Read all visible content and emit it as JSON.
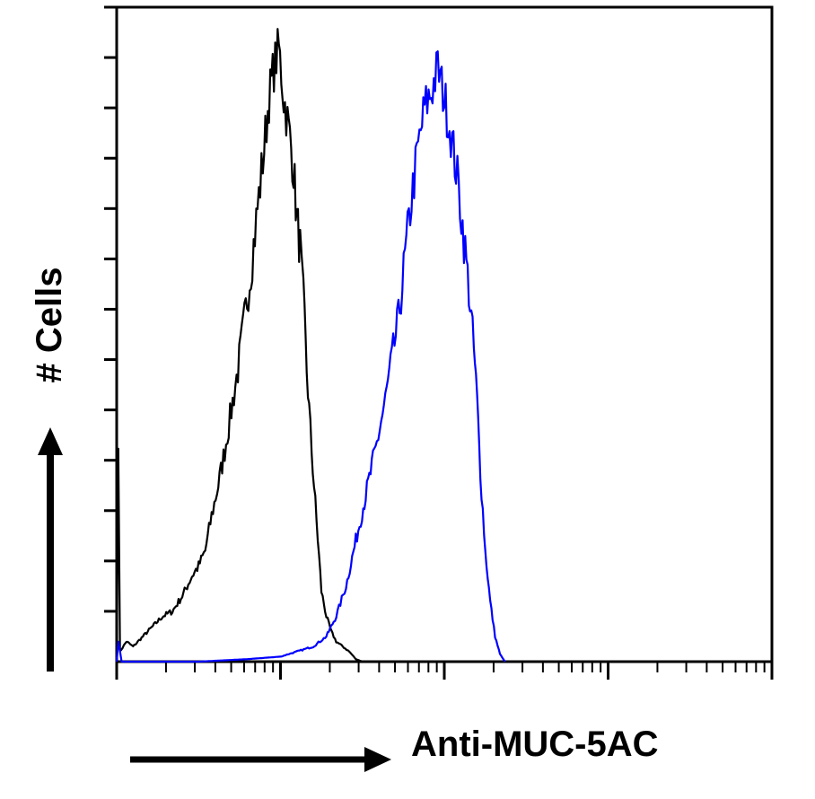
{
  "chart_data": {
    "type": "histogram",
    "title": "",
    "xlabel": "Anti-MUC-5AC",
    "ylabel": "# Cells",
    "x_scale": "log",
    "xlim_decades": [
      0,
      4
    ],
    "ylim": [
      0,
      130
    ],
    "grid": false,
    "legend": "none",
    "series": [
      {
        "color": "#000000",
        "points": [
          [
            0.0,
            0
          ],
          [
            0.01,
            45
          ],
          [
            0.02,
            2
          ],
          [
            0.06,
            4
          ],
          [
            0.1,
            3
          ],
          [
            0.16,
            5
          ],
          [
            0.22,
            7
          ],
          [
            0.28,
            9
          ],
          [
            0.34,
            10
          ],
          [
            0.4,
            13
          ],
          [
            0.46,
            17
          ],
          [
            0.5,
            19
          ],
          [
            0.54,
            22
          ],
          [
            0.58,
            29
          ],
          [
            0.62,
            35
          ],
          [
            0.66,
            42
          ],
          [
            0.7,
            50
          ],
          [
            0.74,
            58
          ],
          [
            0.78,
            68
          ],
          [
            0.82,
            78
          ],
          [
            0.86,
            90
          ],
          [
            0.9,
            102
          ],
          [
            0.93,
            112
          ],
          [
            0.96,
            118
          ],
          [
            0.99,
            122
          ],
          [
            1.02,
            112
          ],
          [
            1.05,
            106
          ],
          [
            1.08,
            98
          ],
          [
            1.1,
            88
          ],
          [
            1.12,
            82
          ],
          [
            1.14,
            72
          ],
          [
            1.16,
            58
          ],
          [
            1.19,
            42
          ],
          [
            1.22,
            28
          ],
          [
            1.25,
            14
          ],
          [
            1.28,
            9
          ],
          [
            1.31,
            6
          ],
          [
            1.34,
            4
          ],
          [
            1.38,
            3
          ],
          [
            1.42,
            2
          ],
          [
            1.46,
            0.5
          ],
          [
            1.5,
            0
          ]
        ]
      },
      {
        "color": "#0000ff",
        "points": [
          [
            0.0,
            0
          ],
          [
            0.01,
            4
          ],
          [
            0.03,
            0
          ],
          [
            0.5,
            0
          ],
          [
            0.8,
            0.5
          ],
          [
            1.0,
            1
          ],
          [
            1.1,
            2
          ],
          [
            1.2,
            3
          ],
          [
            1.28,
            5
          ],
          [
            1.34,
            9
          ],
          [
            1.4,
            15
          ],
          [
            1.46,
            24
          ],
          [
            1.52,
            33
          ],
          [
            1.58,
            42
          ],
          [
            1.64,
            52
          ],
          [
            1.68,
            60
          ],
          [
            1.72,
            68
          ],
          [
            1.76,
            80
          ],
          [
            1.8,
            92
          ],
          [
            1.84,
            102
          ],
          [
            1.88,
            110
          ],
          [
            1.92,
            113
          ],
          [
            1.96,
            118
          ],
          [
            2.0,
            112
          ],
          [
            2.04,
            105
          ],
          [
            2.08,
            96
          ],
          [
            2.12,
            84
          ],
          [
            2.15,
            74
          ],
          [
            2.18,
            62
          ],
          [
            2.2,
            52
          ],
          [
            2.22,
            38
          ],
          [
            2.25,
            22
          ],
          [
            2.28,
            12
          ],
          [
            2.31,
            5
          ],
          [
            2.34,
            1.5
          ],
          [
            2.37,
            0
          ]
        ]
      }
    ]
  }
}
